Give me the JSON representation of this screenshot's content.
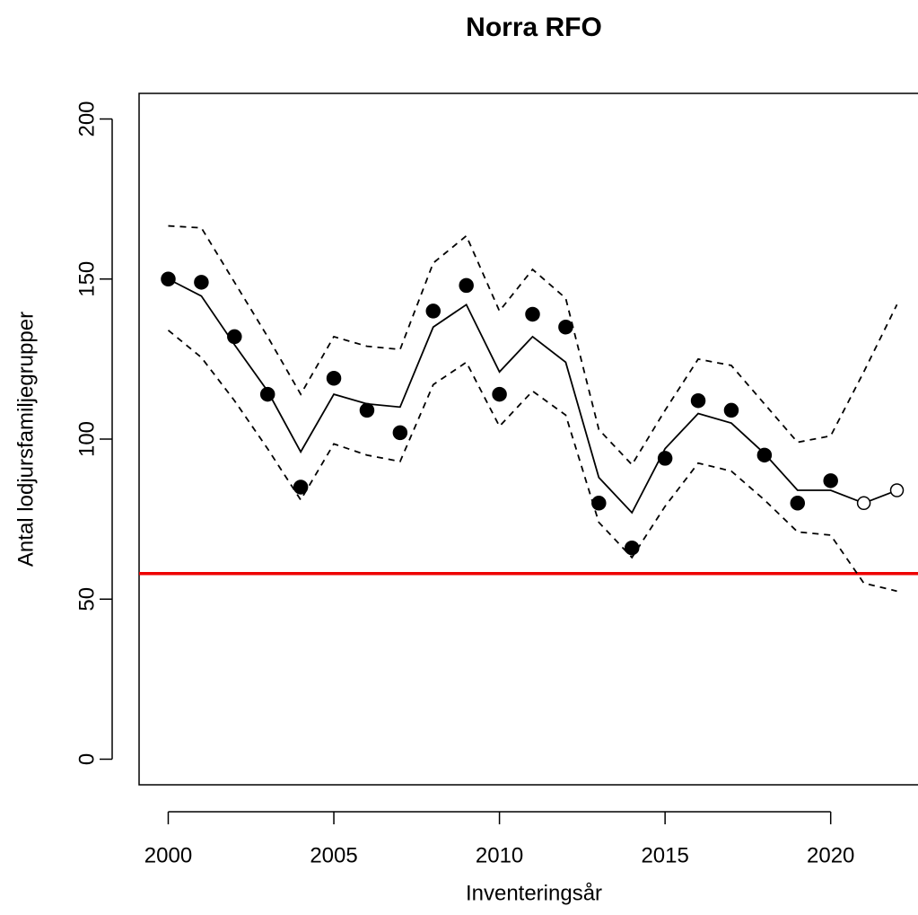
{
  "chart_data": {
    "type": "line",
    "title": "Norra RFO",
    "x_label": "Inventeringsår",
    "y_label": "Antal lodjursfamiljegrupper",
    "x": [
      2000,
      2001,
      2002,
      2003,
      2004,
      2005,
      2006,
      2007,
      2008,
      2009,
      2010,
      2011,
      2012,
      2013,
      2014,
      2015,
      2016,
      2017,
      2018,
      2019,
      2020,
      2021,
      2022
    ],
    "xlim": [
      1999.12,
      2022.88
    ],
    "xticks": [
      2000,
      2005,
      2010,
      2015,
      2020
    ],
    "ylim": [
      -8,
      208
    ],
    "yticks": [
      0,
      50,
      100,
      150,
      200
    ],
    "series": [
      {
        "color": "#000000",
        "line": "solid",
        "marker": "none",
        "values": [
          150,
          144.7,
          129.5,
          115,
          96,
          114,
          111,
          110,
          135,
          142,
          121,
          132,
          124,
          88,
          77,
          97,
          108,
          105,
          95.5,
          84,
          84,
          80,
          84
        ]
      },
      {
        "color": "#000000",
        "line": "dashed",
        "marker": "none",
        "values": [
          166.6,
          166,
          149,
          132,
          114,
          132,
          129,
          128,
          155,
          163.5,
          140,
          153,
          144,
          103,
          92,
          109,
          125,
          123,
          111,
          99,
          101,
          121,
          142
        ]
      },
      {
        "color": "#000000",
        "line": "dashed",
        "marker": "none",
        "values": [
          134,
          125.5,
          112,
          97,
          81,
          98.5,
          95,
          93,
          117,
          124,
          104,
          115,
          107.5,
          74,
          63,
          79,
          92.5,
          90,
          81,
          71,
          70,
          55,
          52.5
        ]
      },
      {
        "color": "#000000",
        "line": "none",
        "marker": "filled",
        "values": [
          150,
          149,
          132,
          114,
          85,
          119,
          109,
          102,
          140,
          148,
          114,
          139,
          135,
          80,
          66,
          94,
          112,
          109,
          95,
          80,
          87,
          null,
          null
        ]
      },
      {
        "color": "#000000",
        "line": "none",
        "marker": "open",
        "values": [
          null,
          null,
          null,
          null,
          null,
          null,
          null,
          null,
          null,
          null,
          null,
          null,
          null,
          null,
          null,
          null,
          null,
          null,
          null,
          null,
          null,
          80,
          84
        ]
      }
    ],
    "hline": 58,
    "hline_color": "#ee0000"
  }
}
